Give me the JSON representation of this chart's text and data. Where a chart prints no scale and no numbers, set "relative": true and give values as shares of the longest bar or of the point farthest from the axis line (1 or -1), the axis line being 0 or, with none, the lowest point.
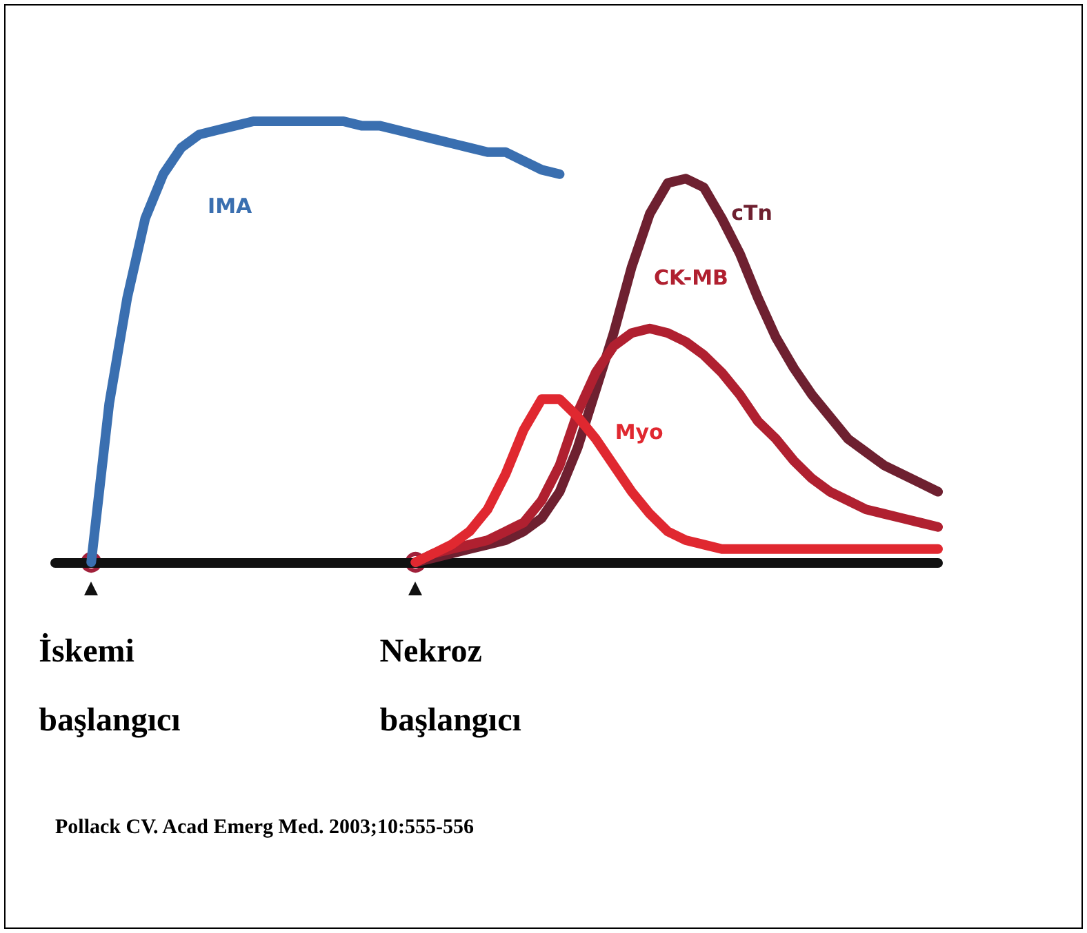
{
  "chart_data": {
    "type": "line",
    "relative": true,
    "grid": false,
    "legend": false,
    "marker": "none",
    "line_style": "solid",
    "categories": [
      null,
      null,
      null,
      null,
      null,
      null,
      null,
      null,
      null,
      null,
      null,
      null,
      null,
      null,
      null,
      null,
      null,
      null,
      null,
      null,
      null,
      null,
      null,
      null,
      null,
      null,
      null,
      null,
      null,
      null,
      null,
      null,
      null,
      null,
      null,
      null,
      null,
      null,
      null,
      null,
      null,
      null,
      null,
      null,
      null,
      null,
      null,
      null,
      null,
      null
    ],
    "series": [
      {
        "name": "IMA",
        "color": "#3a6fb0",
        "values": [
          null,
          null,
          0,
          0.36,
          0.6,
          0.78,
          0.88,
          0.94,
          0.97,
          0.98,
          0.99,
          1.0,
          1.0,
          1.0,
          1.0,
          1.0,
          1.0,
          0.99,
          0.99,
          0.98,
          0.97,
          0.96,
          0.95,
          0.94,
          0.93,
          0.93,
          0.91,
          0.89,
          0.88,
          null,
          null,
          null,
          null,
          null,
          null,
          null,
          null,
          null,
          null,
          null,
          null,
          null,
          null,
          null,
          null,
          null,
          null,
          null,
          null,
          null
        ]
      },
      {
        "name": "cTn",
        "color": "#6e2030",
        "values": [
          null,
          null,
          null,
          null,
          null,
          null,
          null,
          null,
          null,
          null,
          null,
          null,
          null,
          null,
          null,
          null,
          null,
          null,
          null,
          null,
          0,
          0.01,
          0.02,
          0.03,
          0.04,
          0.05,
          0.07,
          0.1,
          0.16,
          0.26,
          0.39,
          0.52,
          0.67,
          0.79,
          0.86,
          0.87,
          0.85,
          0.78,
          0.7,
          0.6,
          0.51,
          0.44,
          0.38,
          0.33,
          0.28,
          0.25,
          0.22,
          0.2,
          0.18,
          0.16
        ]
      },
      {
        "name": "CK-MB",
        "color": "#b02030",
        "values": [
          null,
          null,
          null,
          null,
          null,
          null,
          null,
          null,
          null,
          null,
          null,
          null,
          null,
          null,
          null,
          null,
          null,
          null,
          null,
          null,
          0,
          0.02,
          0.03,
          0.04,
          0.05,
          0.07,
          0.09,
          0.14,
          0.22,
          0.34,
          0.43,
          0.49,
          0.52,
          0.53,
          0.52,
          0.5,
          0.47,
          0.43,
          0.38,
          0.32,
          0.28,
          0.23,
          0.19,
          0.16,
          0.14,
          0.12,
          0.11,
          0.1,
          0.09,
          0.08
        ]
      },
      {
        "name": "Myo",
        "color": "#e02830",
        "values": [
          null,
          null,
          null,
          null,
          null,
          null,
          null,
          null,
          null,
          null,
          null,
          null,
          null,
          null,
          null,
          null,
          null,
          null,
          null,
          null,
          0,
          0.02,
          0.04,
          0.07,
          0.12,
          0.2,
          0.3,
          0.37,
          0.37,
          0.33,
          0.28,
          0.22,
          0.16,
          0.11,
          0.07,
          0.05,
          0.04,
          0.03,
          0.03,
          0.03,
          0.03,
          0.03,
          0.03,
          0.03,
          0.03,
          0.03,
          0.03,
          0.03,
          0.03,
          0.03
        ]
      }
    ],
    "annotations": [
      "İskemi başlangıcı",
      "Nekroz başlangıcı",
      "Pollack CV. Acad Emerg Med. 2003;10:555-556"
    ]
  }
}
